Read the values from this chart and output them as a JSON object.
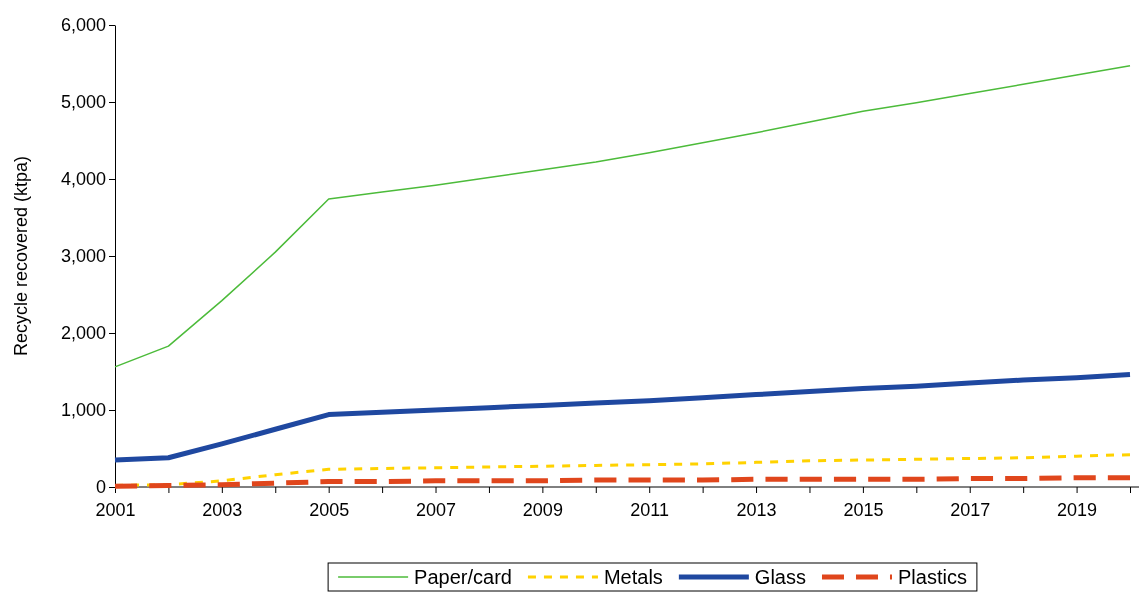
{
  "chart_data": {
    "type": "line",
    "ylabel": "Recycle recovered (ktpa)",
    "categories": [
      "2001",
      null,
      "2003",
      null,
      "2005",
      null,
      "2007",
      null,
      "2009",
      null,
      "2011",
      null,
      "2013",
      null,
      "2015",
      null,
      "2017",
      null,
      "2019",
      null
    ],
    "ylim": [
      0,
      6000
    ],
    "yticks": [
      {
        "value": 0,
        "label": "0"
      },
      {
        "value": 1000,
        "label": "1,000"
      },
      {
        "value": 2000,
        "label": "2,000"
      },
      {
        "value": 3000,
        "label": "3,000"
      },
      {
        "value": 4000,
        "label": "4,000"
      },
      {
        "value": 5000,
        "label": "5,000"
      },
      {
        "value": 6000,
        "label": "6,000"
      }
    ],
    "grid": false,
    "legend": "bottom",
    "marker": "none",
    "series": [
      {
        "name": "Paper/card",
        "color": "#4cbb3a",
        "line_style": "solid",
        "values": [
          1560,
          1830,
          2420,
          3050,
          3740,
          3830,
          3920,
          4020,
          4120,
          4220,
          4340,
          4470,
          4600,
          4740,
          4880,
          4990,
          5110,
          5230,
          5350,
          5470
        ]
      },
      {
        "name": "Metals",
        "color": "#ffd200",
        "line_style": "dotted",
        "values": [
          20,
          30,
          80,
          160,
          230,
          240,
          250,
          260,
          270,
          280,
          290,
          300,
          320,
          340,
          350,
          360,
          370,
          380,
          400,
          420
        ]
      },
      {
        "name": "Glass",
        "color": "#1f48a0",
        "line_style": "solid",
        "values": [
          350,
          380,
          560,
          750,
          940,
          970,
          1000,
          1030,
          1060,
          1090,
          1120,
          1160,
          1200,
          1240,
          1280,
          1310,
          1350,
          1390,
          1420,
          1460
        ]
      },
      {
        "name": "Plastics",
        "color": "#e0461c",
        "line_style": "dashed",
        "values": [
          10,
          20,
          30,
          50,
          70,
          70,
          80,
          80,
          80,
          90,
          90,
          90,
          100,
          100,
          100,
          100,
          110,
          110,
          120,
          120
        ]
      }
    ]
  }
}
